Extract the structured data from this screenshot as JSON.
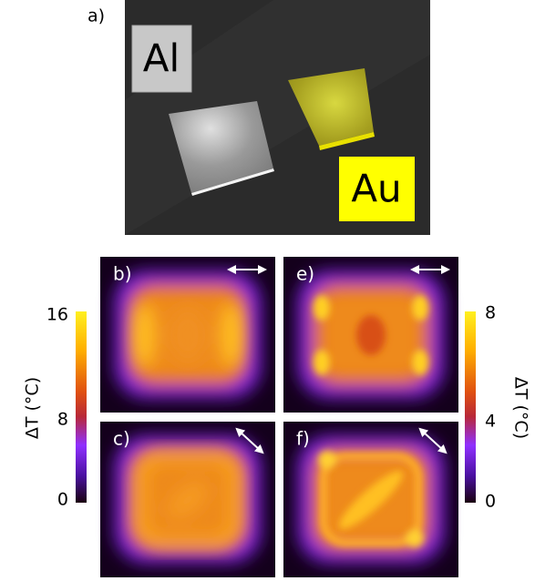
{
  "panel_a": {
    "label": "a)",
    "materials": [
      "Al",
      "Au"
    ]
  },
  "panels": [
    {
      "label": "b)"
    },
    {
      "label": "e)"
    },
    {
      "label": "c)"
    },
    {
      "label": "f)"
    }
  ],
  "colorbars": [
    {
      "label": "ΔT (°C)",
      "ticks": [
        "16",
        "8",
        "0"
      ]
    },
    {
      "label": "ΔT (°C)",
      "ticks": [
        "8",
        "4",
        "0"
      ]
    }
  ]
}
